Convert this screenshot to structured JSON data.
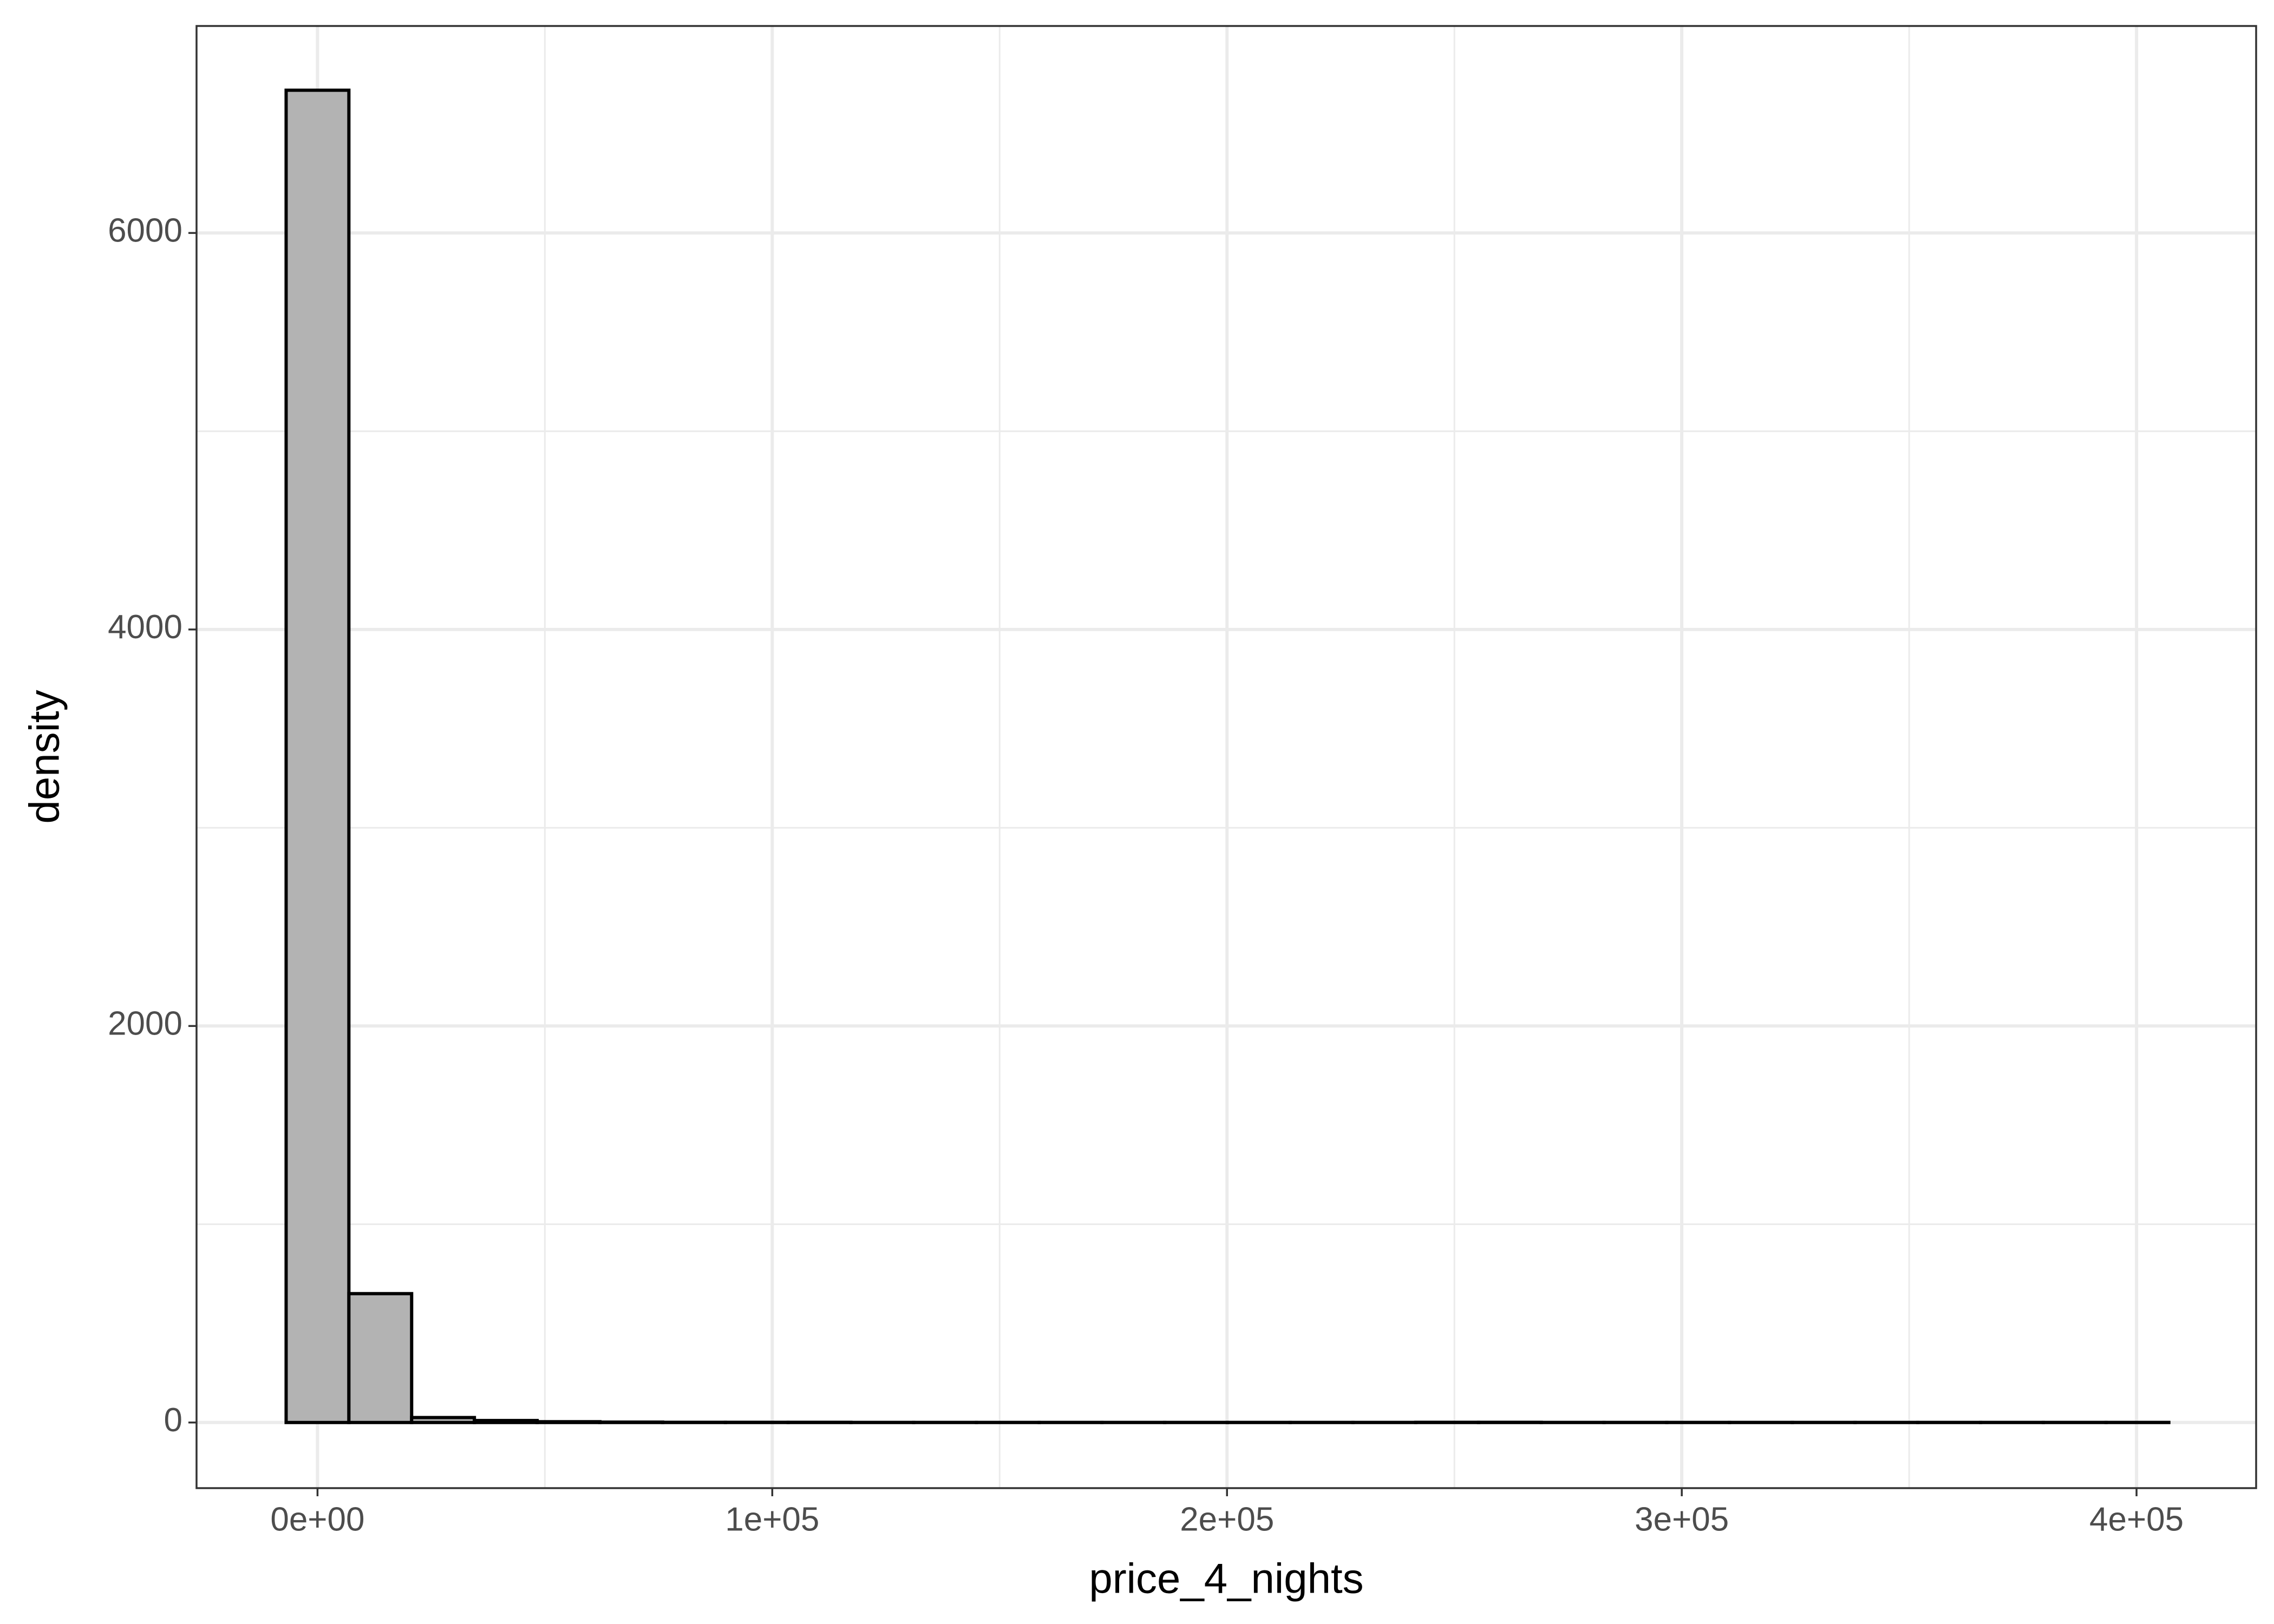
{
  "chart_data": {
    "type": "histogram",
    "x_label": "price_4_nights",
    "y_label": "density",
    "bins": [
      -6900,
      6900,
      20700,
      34500,
      48300,
      62100,
      75900,
      89700,
      103500,
      117300,
      131100,
      144900,
      158700,
      172500,
      186300,
      200100,
      213900,
      227700,
      241500,
      255300,
      269100,
      282900,
      296700,
      310500,
      324300,
      338100,
      351900,
      365700,
      379500,
      393300,
      407100
    ],
    "values": [
      6720,
      650,
      25,
      10,
      4,
      2,
      1,
      1,
      1,
      0.5,
      0.5,
      0.5,
      0.5,
      0.5,
      0.5,
      0.5,
      0.5,
      0.5,
      1,
      1,
      0.5,
      0.5,
      0.5,
      0.5,
      0.5,
      0.5,
      0.5,
      0.5,
      0.5,
      0.5
    ],
    "color": "#b3b3b3",
    "edge_color": "#000000",
    "xlim": [
      -26600,
      426300
    ],
    "ylim": [
      -331,
      7044
    ],
    "xticks": [
      {
        "value": 0,
        "label": "0e+00"
      },
      {
        "value": 100000,
        "label": "1e+05"
      },
      {
        "value": 200000,
        "label": "2e+05"
      },
      {
        "value": 300000,
        "label": "3e+05"
      },
      {
        "value": 400000,
        "label": "4e+05"
      }
    ],
    "yticks": [
      0,
      2000,
      4000,
      6000
    ],
    "x_minor_grid": [
      50000,
      150000,
      250000,
      350000
    ],
    "y_minor_grid": [
      1000,
      3000,
      5000
    ],
    "grid": true
  }
}
